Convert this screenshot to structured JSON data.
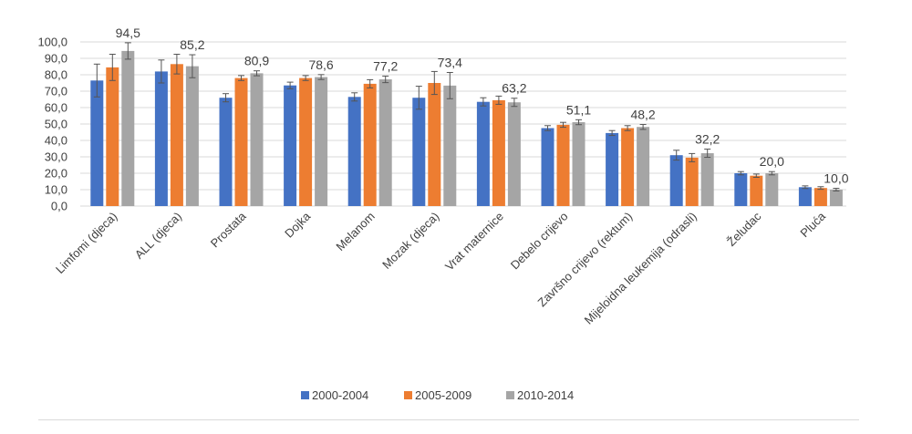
{
  "chart_data": {
    "type": "bar",
    "categories": [
      "Limfomi (djeca)",
      "ALL (djeca)",
      "Prostata",
      "Dojka",
      "Melanom",
      "Mozak (djeca)",
      "Vrat maternice",
      "Debelo crijevo",
      "Završno crijevo (rektum)",
      "Mijeloidna leukemija (odrasli)",
      "Želudac",
      "Pluća"
    ],
    "series": [
      {
        "name": "2000-2004",
        "color": "#4472c4",
        "values": [
          76.5,
          82.0,
          66.0,
          73.5,
          66.5,
          66.0,
          63.5,
          47.5,
          44.5,
          31.0,
          20.0,
          11.5
        ],
        "errors": [
          10.0,
          7.0,
          2.5,
          2.0,
          2.5,
          7.0,
          2.5,
          1.5,
          1.5,
          3.0,
          1.0,
          0.8
        ]
      },
      {
        "name": "2005-2009",
        "color": "#ed7d31",
        "values": [
          84.5,
          86.5,
          78.0,
          78.0,
          74.5,
          75.0,
          64.5,
          49.5,
          47.5,
          29.5,
          18.5,
          11.0
        ],
        "errors": [
          8.0,
          6.0,
          1.5,
          1.5,
          2.5,
          7.0,
          2.5,
          1.5,
          1.5,
          2.5,
          1.0,
          0.8
        ]
      },
      {
        "name": "2010-2014",
        "color": "#a5a5a5",
        "values": [
          94.5,
          85.2,
          80.9,
          78.6,
          77.2,
          73.4,
          63.2,
          51.1,
          48.2,
          32.2,
          20.0,
          10.0
        ],
        "errors": [
          5.0,
          7.0,
          1.5,
          1.5,
          2.0,
          8.0,
          2.5,
          1.5,
          1.5,
          2.5,
          1.0,
          0.8
        ]
      }
    ],
    "data_labels": [
      "94,5",
      "85,2",
      "80,9",
      "78,6",
      "77,2",
      "73,4",
      "63,2",
      "51,1",
      "48,2",
      "32,2",
      "20,0",
      "10,0"
    ],
    "y_tick_labels": [
      "0,0",
      "10,0",
      "20,0",
      "30,0",
      "40,0",
      "50,0",
      "60,0",
      "70,0",
      "80,0",
      "90,0",
      "100,0"
    ],
    "ylim": [
      0,
      100
    ],
    "grid": true,
    "legend_position": "bottom",
    "title": "",
    "xlabel": "",
    "ylabel": ""
  }
}
